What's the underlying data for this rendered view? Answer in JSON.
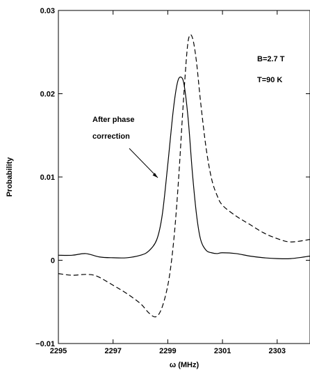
{
  "chart_data": {
    "type": "line",
    "xlabel": "ω (MHz)",
    "ylabel": "Probability",
    "xlim": [
      2295,
      2304.2
    ],
    "ylim": [
      -0.01,
      0.03
    ],
    "x_ticks": [
      2295,
      2297,
      2299,
      2301,
      2303
    ],
    "y_ticks": [
      {
        "value": -0.01,
        "label": "−0.01"
      },
      {
        "value": 0,
        "label": "0"
      },
      {
        "value": 0.01,
        "label": "0.01"
      },
      {
        "value": 0.02,
        "label": "0.02"
      },
      {
        "value": 0.03,
        "label": "0.03"
      }
    ],
    "grid": false,
    "series": [
      {
        "style": "solid",
        "color": "#000000",
        "points": [
          [
            2295.0,
            0.0006
          ],
          [
            2295.5,
            0.0006
          ],
          [
            2296.0,
            0.0008
          ],
          [
            2296.5,
            0.0004
          ],
          [
            2297.0,
            0.0003
          ],
          [
            2297.5,
            0.0003
          ],
          [
            2298.0,
            0.0006
          ],
          [
            2298.3,
            0.0011
          ],
          [
            2298.6,
            0.0025
          ],
          [
            2298.8,
            0.0055
          ],
          [
            2299.0,
            0.0115
          ],
          [
            2299.2,
            0.018
          ],
          [
            2299.35,
            0.0213
          ],
          [
            2299.48,
            0.022
          ],
          [
            2299.6,
            0.021
          ],
          [
            2299.75,
            0.0168
          ],
          [
            2299.9,
            0.0105
          ],
          [
            2300.05,
            0.0055
          ],
          [
            2300.2,
            0.0025
          ],
          [
            2300.4,
            0.0012
          ],
          [
            2300.6,
            0.0009
          ],
          [
            2300.8,
            0.0008
          ],
          [
            2301.0,
            0.0009
          ],
          [
            2301.5,
            0.0008
          ],
          [
            2302.0,
            0.0005
          ],
          [
            2302.5,
            0.0003
          ],
          [
            2303.0,
            0.0002
          ],
          [
            2303.5,
            0.0002
          ],
          [
            2304.2,
            0.0005
          ]
        ]
      },
      {
        "style": "dashed",
        "color": "#000000",
        "points": [
          [
            2295.0,
            -0.0016
          ],
          [
            2295.5,
            -0.0018
          ],
          [
            2296.0,
            -0.0017
          ],
          [
            2296.4,
            -0.0019
          ],
          [
            2297.0,
            -0.003
          ],
          [
            2297.5,
            -0.004
          ],
          [
            2298.0,
            -0.0052
          ],
          [
            2298.3,
            -0.0063
          ],
          [
            2298.55,
            -0.0068
          ],
          [
            2298.75,
            -0.006
          ],
          [
            2298.95,
            -0.0038
          ],
          [
            2299.1,
            -0.001
          ],
          [
            2299.25,
            0.0035
          ],
          [
            2299.4,
            0.01
          ],
          [
            2299.55,
            0.018
          ],
          [
            2299.7,
            0.025
          ],
          [
            2299.8,
            0.027
          ],
          [
            2299.92,
            0.0265
          ],
          [
            2300.05,
            0.0238
          ],
          [
            2300.2,
            0.019
          ],
          [
            2300.4,
            0.0135
          ],
          [
            2300.6,
            0.0098
          ],
          [
            2300.8,
            0.0078
          ],
          [
            2301.0,
            0.0066
          ],
          [
            2301.5,
            0.0053
          ],
          [
            2302.0,
            0.0043
          ],
          [
            2302.5,
            0.0033
          ],
          [
            2303.0,
            0.0026
          ],
          [
            2303.5,
            0.0022
          ],
          [
            2304.2,
            0.0025
          ]
        ]
      }
    ],
    "annotations": {
      "field": "B=2.7 T",
      "temperature": "T=90 K",
      "arrow_label_line1": "After phase",
      "arrow_label_line2": "correction"
    }
  }
}
